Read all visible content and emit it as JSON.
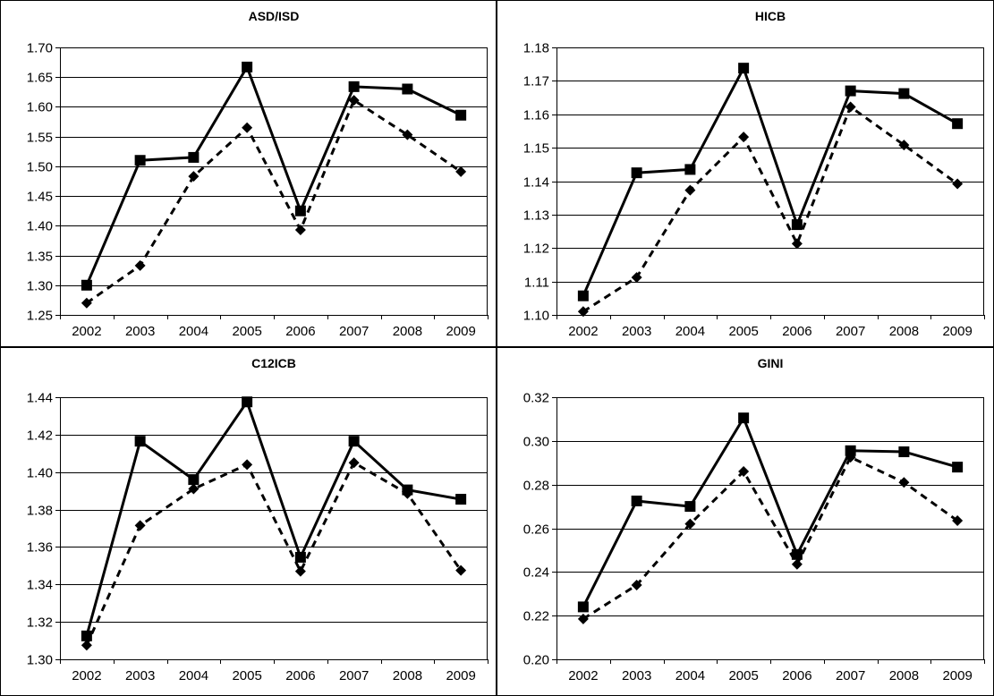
{
  "chart_data": [
    {
      "type": "line",
      "title": "ASD/ISD",
      "categories": [
        "2002",
        "2003",
        "2004",
        "2005",
        "2006",
        "2007",
        "2008",
        "2009"
      ],
      "ylim": [
        1.25,
        1.7
      ],
      "yticks": [
        "1.25",
        "1.30",
        "1.35",
        "1.40",
        "1.45",
        "1.50",
        "1.55",
        "1.60",
        "1.65",
        "1.70"
      ],
      "grid": "horizontal",
      "series": [
        {
          "style": "solid",
          "marker": "square",
          "values": [
            1.3,
            1.51,
            1.515,
            1.667,
            1.425,
            1.634,
            1.63,
            1.586
          ]
        },
        {
          "style": "dashed",
          "marker": "diamond",
          "values": [
            1.27,
            1.333,
            1.483,
            1.565,
            1.393,
            1.611,
            1.553,
            1.491
          ]
        }
      ]
    },
    {
      "type": "line",
      "title": "HICB",
      "categories": [
        "2002",
        "2003",
        "2004",
        "2005",
        "2006",
        "2007",
        "2008",
        "2009"
      ],
      "ylim": [
        1.1,
        1.18
      ],
      "yticks": [
        "1.10",
        "1.11",
        "1.12",
        "1.13",
        "1.14",
        "1.15",
        "1.16",
        "1.17",
        "1.18"
      ],
      "grid": "horizontal",
      "series": [
        {
          "style": "solid",
          "marker": "square",
          "values": [
            1.1057,
            1.1425,
            1.1435,
            1.1738,
            1.127,
            1.167,
            1.1662,
            1.1572
          ]
        },
        {
          "style": "dashed",
          "marker": "diamond",
          "values": [
            1.101,
            1.1112,
            1.1373,
            1.1532,
            1.1213,
            1.1622,
            1.1508,
            1.1392
          ]
        }
      ]
    },
    {
      "type": "line",
      "title": "C12ICB",
      "categories": [
        "2002",
        "2003",
        "2004",
        "2005",
        "2006",
        "2007",
        "2008",
        "2009"
      ],
      "ylim": [
        1.3,
        1.44
      ],
      "yticks": [
        "1.30",
        "1.32",
        "1.34",
        "1.36",
        "1.38",
        "1.40",
        "1.42",
        "1.44"
      ],
      "grid": "horizontal",
      "series": [
        {
          "style": "solid",
          "marker": "square",
          "values": [
            1.3125,
            1.4165,
            1.396,
            1.4375,
            1.3545,
            1.4165,
            1.3905,
            1.3855
          ]
        },
        {
          "style": "dashed",
          "marker": "diamond",
          "values": [
            1.3075,
            1.3715,
            1.391,
            1.404,
            1.347,
            1.405,
            1.3885,
            1.3475
          ]
        }
      ]
    },
    {
      "type": "line",
      "title": "GINI",
      "categories": [
        "2002",
        "2003",
        "2004",
        "2005",
        "2006",
        "2007",
        "2008",
        "2009"
      ],
      "ylim": [
        0.2,
        0.32
      ],
      "yticks": [
        "0.20",
        "0.22",
        "0.24",
        "0.26",
        "0.28",
        "0.30",
        "0.32"
      ],
      "grid": "horizontal",
      "series": [
        {
          "style": "solid",
          "marker": "square",
          "values": [
            0.224,
            0.2725,
            0.27,
            0.3105,
            0.248,
            0.2955,
            0.295,
            0.288
          ]
        },
        {
          "style": "dashed",
          "marker": "diamond",
          "values": [
            0.2185,
            0.234,
            0.262,
            0.286,
            0.2435,
            0.2925,
            0.281,
            0.2635
          ]
        }
      ]
    }
  ]
}
